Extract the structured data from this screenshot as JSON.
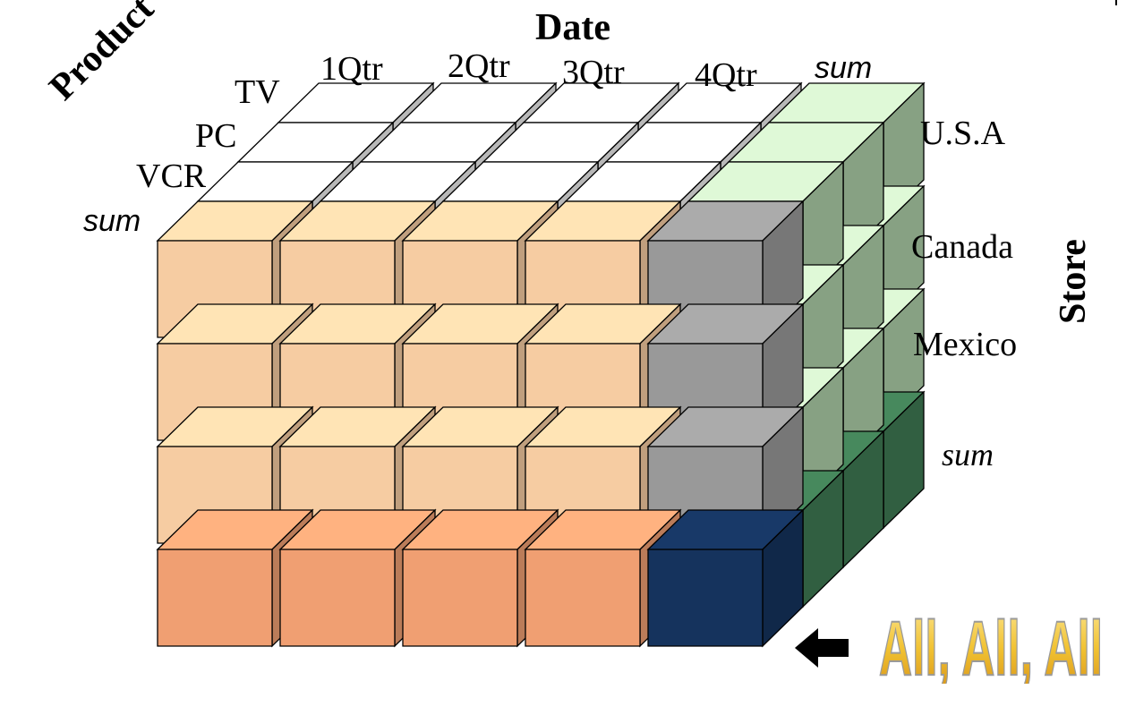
{
  "title": "Date",
  "axes": {
    "product": "Product",
    "store": "Store"
  },
  "date_labels": [
    "1Qtr",
    "2Qtr",
    "3Qtr",
    "4Qtr",
    "sum"
  ],
  "product_labels": [
    "TV",
    "PC",
    "VCR",
    "sum"
  ],
  "store_labels": [
    "U.S.A",
    "Canada",
    "Mexico",
    "sum"
  ],
  "callout": "All, All, All",
  "colors": {
    "base_cell": "#f6cca2",
    "sum_row": "#f09f72",
    "sum_column": "#999999",
    "total_cell": "#15335d",
    "top_white": "#ffffff",
    "right_green": "#adcea8",
    "right_green_top": "#dff9d7",
    "dark_green": "#3f7a53",
    "callout_yellow": "#f1c232"
  }
}
